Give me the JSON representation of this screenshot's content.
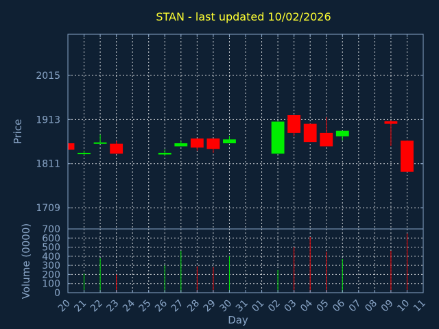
{
  "chart_data": {
    "type": "candlestick",
    "title": "STAN - last updated 10/02/2026",
    "price_panel": {
      "ylabel": "Price",
      "ylim": [
        1660,
        2110
      ],
      "yticks": [
        1709,
        1811,
        1913,
        2015
      ]
    },
    "volume_panel": {
      "ylabel": "Volume (0000)",
      "ylim": [
        0,
        700
      ],
      "yticks": [
        0,
        100,
        200,
        300,
        400,
        500,
        600,
        700
      ]
    },
    "xlabel": "Day",
    "xlim": [
      0,
      22
    ],
    "x_tick_labels": [
      "20",
      "21",
      "22",
      "23",
      "24",
      "25",
      "26",
      "27",
      "28",
      "29",
      "30",
      "31",
      "01",
      "02",
      "03",
      "04",
      "05",
      "06",
      "07",
      "08",
      "09",
      "10",
      "11"
    ],
    "candles": [
      {
        "x": 0,
        "open": 1858,
        "close": 1843,
        "high": 1858,
        "low": 1843,
        "volume": 0
      },
      {
        "x": 1,
        "open": 1833,
        "close": 1836,
        "high": 1841,
        "low": 1831,
        "volume": 210
      },
      {
        "x": 2,
        "open": 1857,
        "close": 1860,
        "high": 1878,
        "low": 1857,
        "volume": 380
      },
      {
        "x": 3,
        "open": 1857,
        "close": 1834,
        "high": 1863,
        "low": 1834,
        "volume": 200
      },
      {
        "x": 6,
        "open": 1832,
        "close": 1836,
        "high": 1844,
        "low": 1829,
        "volume": 300
      },
      {
        "x": 7,
        "open": 1851,
        "close": 1858,
        "high": 1863,
        "low": 1851,
        "volume": 460
      },
      {
        "x": 8,
        "open": 1869,
        "close": 1848,
        "high": 1869,
        "low": 1841,
        "volume": 290
      },
      {
        "x": 9,
        "open": 1869,
        "close": 1845,
        "high": 1869,
        "low": 1836,
        "volume": 280
      },
      {
        "x": 10,
        "open": 1858,
        "close": 1867,
        "high": 1875,
        "low": 1858,
        "volume": 400
      },
      {
        "x": 13,
        "open": 1834,
        "close": 1908,
        "high": 1908,
        "low": 1834,
        "volume": 250
      },
      {
        "x": 14,
        "open": 1923,
        "close": 1882,
        "high": 1923,
        "low": 1874,
        "volume": 500
      },
      {
        "x": 15,
        "open": 1903,
        "close": 1861,
        "high": 1903,
        "low": 1861,
        "volume": 610
      },
      {
        "x": 16,
        "open": 1882,
        "close": 1851,
        "high": 1918,
        "low": 1851,
        "volume": 450
      },
      {
        "x": 17,
        "open": 1874,
        "close": 1887,
        "high": 1887,
        "low": 1865,
        "volume": 370
      },
      {
        "x": 20,
        "open": 1909,
        "close": 1903,
        "high": 1911,
        "low": 1852,
        "volume": 460
      },
      {
        "x": 21,
        "open": 1864,
        "close": 1792,
        "high": 1864,
        "low": 1792,
        "volume": 650
      }
    ],
    "colors": {
      "up": "#00ee00",
      "down": "#ff0000",
      "background": "#0f2033",
      "frame": "#8aa6c8",
      "title": "#ffff33"
    }
  }
}
